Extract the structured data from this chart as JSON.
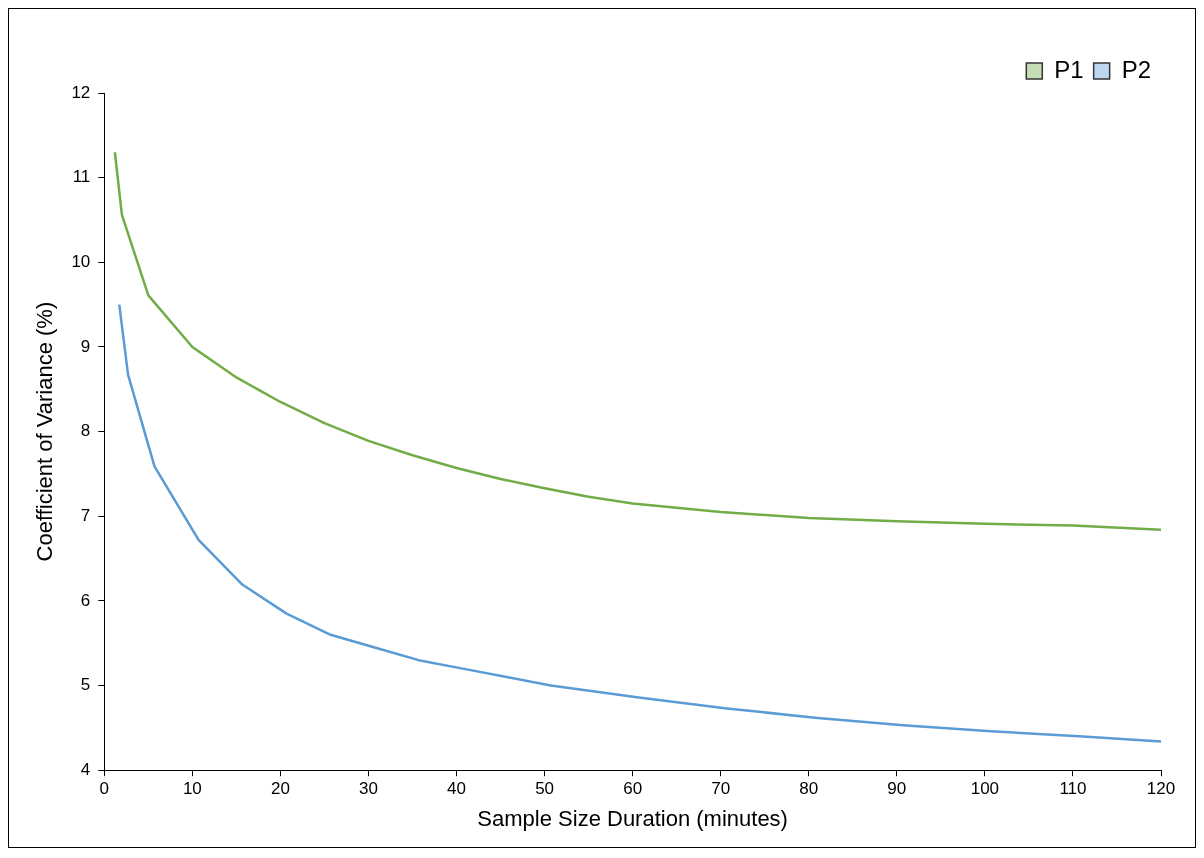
{
  "chart_data": {
    "type": "line",
    "xlabel": "Sample Size Duration (minutes)",
    "ylabel": "Coefficient of Variance (%)",
    "xlim": [
      0,
      120
    ],
    "xticks": [
      0,
      10,
      20,
      30,
      40,
      50,
      60,
      70,
      80,
      90,
      100,
      110,
      120
    ],
    "ylim": [
      4,
      12
    ],
    "yticks": [
      4,
      5,
      6,
      7,
      8,
      9,
      10,
      11,
      12
    ],
    "grid": false,
    "legend": "top right",
    "marker": "none",
    "series": [
      {
        "name": "P1",
        "color": "#70ad47",
        "x": [
          1.2,
          2,
          5,
          10,
          15,
          20,
          25,
          30,
          35,
          40,
          45,
          50,
          55,
          60,
          70,
          80,
          90,
          100,
          110,
          120
        ],
        "values": [
          11.3,
          10.56,
          9.61,
          9.0,
          8.64,
          8.35,
          8.1,
          7.89,
          7.72,
          7.57,
          7.44,
          7.33,
          7.23,
          7.15,
          7.05,
          6.98,
          6.94,
          6.91,
          6.89,
          6.84
        ]
      },
      {
        "name": "P2",
        "color": "#5b9bd5",
        "x": [
          1.7,
          2.7,
          5.7,
          10.7,
          15.7,
          20.7,
          25.7,
          30.7,
          35.7,
          40.7,
          45.7,
          50.7,
          55.7,
          60.7,
          70.7,
          80.7,
          90.7,
          100.7,
          110.7,
          120
        ],
        "values": [
          9.5,
          8.67,
          7.59,
          6.72,
          6.19,
          5.85,
          5.6,
          5.45,
          5.3,
          5.2,
          5.1,
          5.0,
          4.93,
          4.86,
          4.73,
          4.62,
          4.53,
          4.46,
          4.4,
          4.34
        ]
      }
    ]
  }
}
